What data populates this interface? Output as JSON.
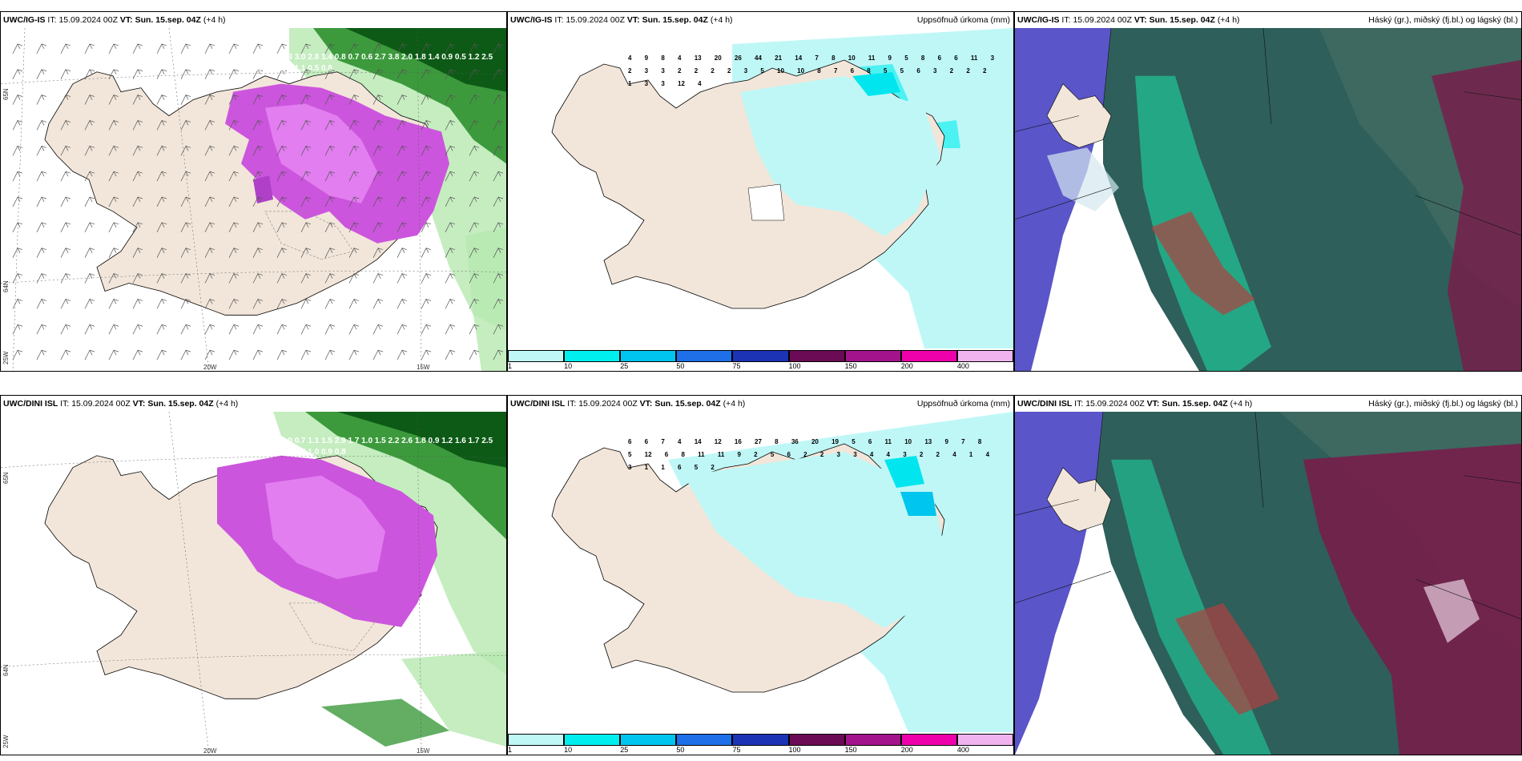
{
  "rows": [
    {
      "model": "UWC/IG-IS",
      "it_label": "IT:",
      "it_value": "15.09.2024 00Z",
      "vt_label": "VT:",
      "vt_value": "Sun. 15.sep. 04Z",
      "lead": "(+4 h)",
      "precip_values": [
        "4",
        "9",
        "8",
        "4",
        "13",
        "20",
        "26",
        "44",
        "21",
        "14",
        "7",
        "8",
        "10",
        "11",
        "9",
        "5",
        "8",
        "6",
        "6",
        "11",
        "3",
        "2",
        "3",
        "3",
        "2",
        "2",
        "2",
        "2",
        "3",
        "5",
        "10",
        "10",
        "8",
        "7",
        "6",
        "8",
        "5",
        "5",
        "6",
        "3",
        "2",
        "2",
        "2",
        "1",
        "3",
        "3",
        "12",
        "4"
      ],
      "wind_numbers": [
        "0.9",
        "3.2",
        "2.5",
        "2.3",
        "3.0",
        "2.8",
        "1.4",
        "0.8",
        "0.7",
        "0.6",
        "2.7",
        "3.8",
        "2.0",
        "1.8",
        "1.4",
        "0.9",
        "0.5",
        "1.2",
        "2.5",
        "1.8",
        "1.5",
        "1.9",
        "2.6",
        "1.1",
        "0.5",
        "0.8"
      ]
    },
    {
      "model": "UWC/DINI ISL",
      "it_label": "IT:",
      "it_value": "15.09.2024 00Z",
      "vt_label": "VT:",
      "vt_value": "Sun. 15.sep. 04Z",
      "lead": "(+4 h)",
      "precip_values": [
        "6",
        "6",
        "7",
        "4",
        "14",
        "12",
        "16",
        "27",
        "8",
        "36",
        "20",
        "19",
        "5",
        "6",
        "11",
        "10",
        "13",
        "9",
        "7",
        "8",
        "5",
        "12",
        "6",
        "8",
        "11",
        "11",
        "9",
        "2",
        "5",
        "6",
        "2",
        "2",
        "3",
        "3",
        "4",
        "4",
        "3",
        "2",
        "2",
        "4",
        "1",
        "4",
        "3",
        "1",
        "1",
        "6",
        "5",
        "2"
      ],
      "wind_numbers": [
        "0.7",
        "0.3",
        "0.5",
        "1.0",
        "0.7",
        "1.1",
        "1.5",
        "2.9",
        "1.7",
        "1.0",
        "1.5",
        "2.2",
        "2.6",
        "1.8",
        "0.9",
        "1.2",
        "1.6",
        "1.7",
        "2.5",
        "0.6",
        "0.9",
        "1.5",
        "0.6",
        "0.5",
        "1.0",
        "0.9",
        "0.8"
      ]
    }
  ],
  "precip_title": "Uppsöfnuð úrkoma (mm)",
  "cloud_title": "Háský (gr.), miðský (fj.bl.) og lágský (bl.)",
  "colorbar": {
    "ticks": [
      "1",
      "10",
      "25",
      "50",
      "75",
      "100",
      "150",
      "200",
      "400"
    ],
    "colors": [
      "#bff7f7",
      "#00eeee",
      "#00c5ee",
      "#1e6fe8",
      "#1c33b5",
      "#6b0a55",
      "#a3138c",
      "#ee00aa",
      "#f0b3f0"
    ]
  },
  "axis": {
    "lon_left": "20W",
    "lon_right": "15W",
    "lat_top": "65N",
    "lat_bottom": "64N",
    "lon_corner": "25W"
  }
}
